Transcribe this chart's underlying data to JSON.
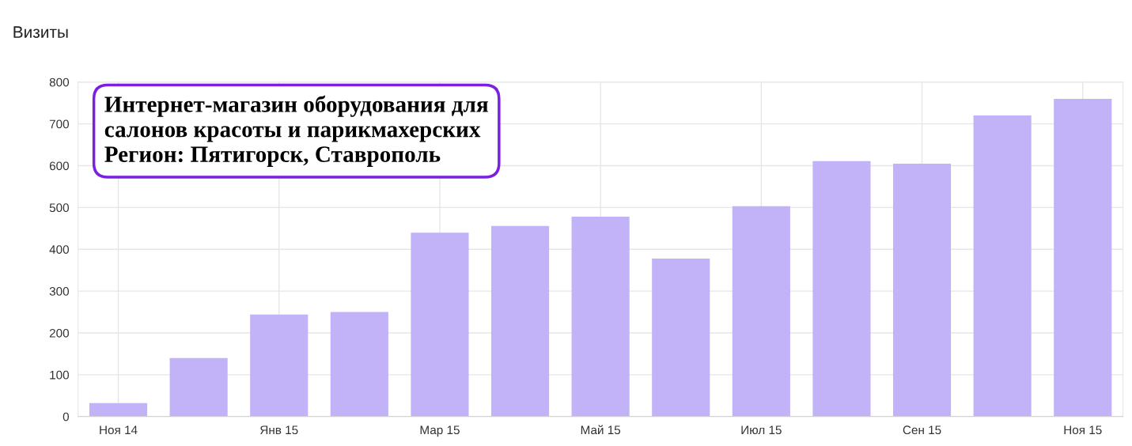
{
  "chart_data": {
    "type": "bar",
    "ylabel": "Визиты",
    "categories": [
      "Ноя 14",
      null,
      "Янв 15",
      null,
      "Мар 15",
      null,
      "Май 15",
      null,
      "Июл 15",
      null,
      "Сен 15",
      null,
      "Ноя 15"
    ],
    "values": [
      32,
      140,
      244,
      250,
      440,
      456,
      478,
      378,
      503,
      611,
      605,
      720,
      760
    ],
    "color": "#c2b3f8",
    "ylim": [
      0,
      800
    ],
    "yticks": [
      0,
      100,
      200,
      300,
      400,
      500,
      600,
      700,
      800
    ],
    "grid": true,
    "annotations": [
      "Интернет-магазин оборудования для\nсалонов красоты и парикмахерских\nРегион: Пятигорск, Ставрополь"
    ]
  }
}
